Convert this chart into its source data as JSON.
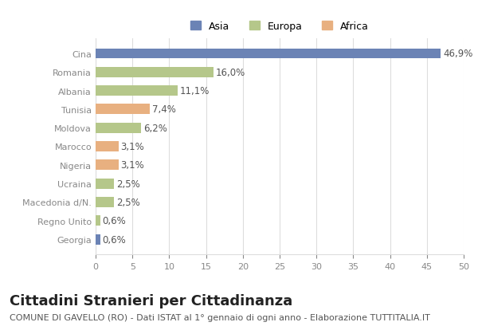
{
  "categories": [
    "Cina",
    "Romania",
    "Albania",
    "Tunisia",
    "Moldova",
    "Marocco",
    "Nigeria",
    "Ucraina",
    "Macedonia d/N.",
    "Regno Unito",
    "Georgia"
  ],
  "values": [
    46.9,
    16.0,
    11.1,
    7.4,
    6.2,
    3.1,
    3.1,
    2.5,
    2.5,
    0.6,
    0.6
  ],
  "labels": [
    "46,9%",
    "16,0%",
    "11,1%",
    "7,4%",
    "6,2%",
    "3,1%",
    "3,1%",
    "2,5%",
    "2,5%",
    "0,6%",
    "0,6%"
  ],
  "colors": [
    "#6b83b5",
    "#b5c78a",
    "#b5c78a",
    "#e8b080",
    "#b5c78a",
    "#e8b080",
    "#e8b080",
    "#b5c78a",
    "#b5c78a",
    "#b5c78a",
    "#6b83b5"
  ],
  "legend_labels": [
    "Asia",
    "Europa",
    "Africa"
  ],
  "legend_colors": [
    "#6b83b5",
    "#b5c78a",
    "#e8b080"
  ],
  "title": "Cittadini Stranieri per Cittadinanza",
  "subtitle": "COMUNE DI GAVELLO (RO) - Dati ISTAT al 1° gennaio di ogni anno - Elaborazione TUTTITALIA.IT",
  "xlim": [
    0,
    50
  ],
  "xticks": [
    0,
    5,
    10,
    15,
    20,
    25,
    30,
    35,
    40,
    45,
    50
  ],
  "background_color": "#ffffff",
  "grid_color": "#dddddd",
  "bar_height": 0.55,
  "label_fontsize": 8.5,
  "tick_fontsize": 8,
  "title_fontsize": 13,
  "subtitle_fontsize": 8
}
